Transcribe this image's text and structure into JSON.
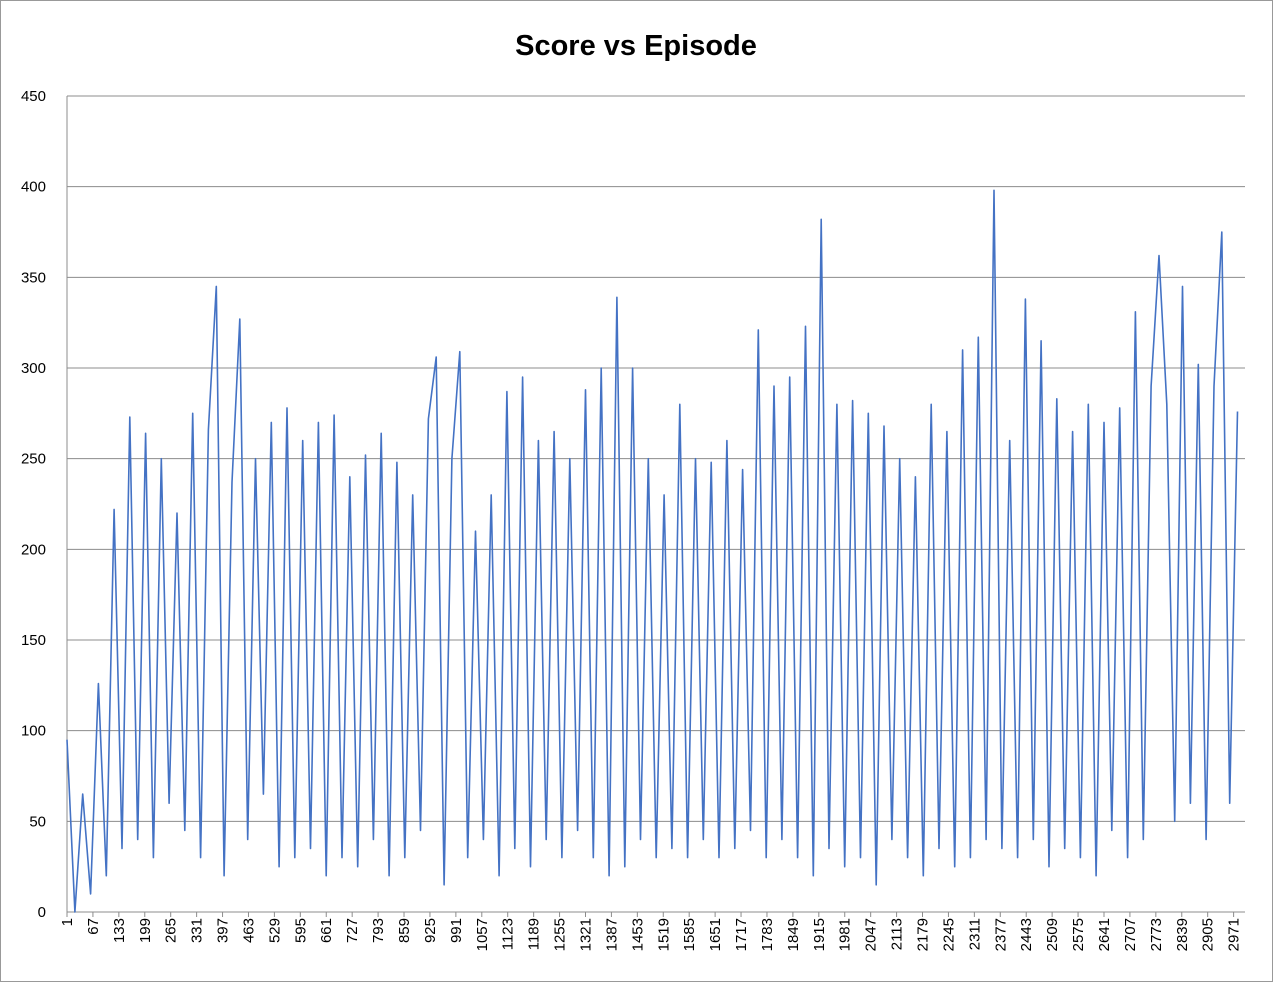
{
  "chart_data": {
    "type": "line",
    "title": "Score vs Episode",
    "x": [
      1,
      21,
      41,
      61,
      81,
      101,
      121,
      141,
      161,
      181,
      201,
      221,
      241,
      261,
      281,
      301,
      321,
      341,
      361,
      381,
      401,
      421,
      441,
      461,
      481,
      501,
      521,
      541,
      561,
      581,
      601,
      621,
      641,
      661,
      681,
      701,
      721,
      741,
      761,
      781,
      801,
      821,
      841,
      861,
      881,
      901,
      921,
      941,
      961,
      981,
      1001,
      1021,
      1041,
      1061,
      1081,
      1101,
      1121,
      1141,
      1161,
      1181,
      1201,
      1221,
      1241,
      1261,
      1281,
      1301,
      1321,
      1341,
      1361,
      1381,
      1401,
      1421,
      1441,
      1461,
      1481,
      1501,
      1521,
      1541,
      1561,
      1581,
      1601,
      1621,
      1641,
      1661,
      1681,
      1701,
      1721,
      1741,
      1761,
      1781,
      1801,
      1821,
      1841,
      1861,
      1881,
      1901,
      1921,
      1941,
      1961,
      1981,
      2001,
      2021,
      2041,
      2061,
      2081,
      2101,
      2121,
      2141,
      2161,
      2181,
      2201,
      2221,
      2241,
      2261,
      2281,
      2301,
      2321,
      2341,
      2361,
      2381,
      2401,
      2421,
      2441,
      2461,
      2481,
      2501,
      2521,
      2541,
      2561,
      2581,
      2601,
      2621,
      2641,
      2661,
      2681,
      2701,
      2721,
      2741,
      2761,
      2781,
      2801,
      2821,
      2841,
      2861,
      2881,
      2901,
      2921,
      2941,
      2961,
      2981
    ],
    "values": [
      95,
      0,
      65,
      10,
      126,
      20,
      222,
      35,
      273,
      40,
      264,
      30,
      250,
      60,
      220,
      45,
      275,
      30,
      266,
      345,
      20,
      237,
      327,
      40,
      250,
      65,
      270,
      25,
      278,
      30,
      260,
      35,
      270,
      20,
      274,
      30,
      240,
      25,
      252,
      40,
      264,
      20,
      248,
      30,
      230,
      45,
      272,
      306,
      15,
      250,
      309,
      30,
      210,
      40,
      230,
      20,
      287,
      35,
      295,
      25,
      260,
      40,
      265,
      30,
      250,
      45,
      288,
      30,
      300,
      20,
      339,
      25,
      300,
      40,
      250,
      30,
      230,
      35,
      280,
      30,
      250,
      40,
      248,
      30,
      260,
      35,
      244,
      45,
      321,
      30,
      290,
      40,
      295,
      30,
      323,
      20,
      382,
      35,
      280,
      25,
      282,
      30,
      275,
      15,
      268,
      40,
      250,
      30,
      240,
      20,
      280,
      35,
      265,
      25,
      310,
      30,
      317,
      40,
      398,
      35,
      260,
      30,
      338,
      40,
      315,
      25,
      283,
      35,
      265,
      30,
      280,
      20,
      270,
      45,
      278,
      30,
      331,
      40,
      290,
      362,
      280,
      50,
      345,
      60,
      302,
      40,
      290,
      375,
      60,
      276
    ],
    "color": "#4472c4",
    "xlim": [
      1,
      3000
    ],
    "xticks": [
      1,
      67,
      133,
      199,
      265,
      331,
      397,
      463,
      529,
      595,
      661,
      727,
      793,
      859,
      925,
      991,
      1057,
      1123,
      1189,
      1255,
      1321,
      1387,
      1453,
      1519,
      1585,
      1651,
      1717,
      1783,
      1849,
      1915,
      1981,
      2047,
      2113,
      2179,
      2245,
      2311,
      2377,
      2443,
      2509,
      2575,
      2641,
      2707,
      2773,
      2839,
      2905,
      2971
    ],
    "ylim": [
      0,
      450
    ],
    "yticks": [
      0,
      50,
      100,
      150,
      200,
      250,
      300,
      350,
      400,
      450
    ],
    "grid": true
  }
}
